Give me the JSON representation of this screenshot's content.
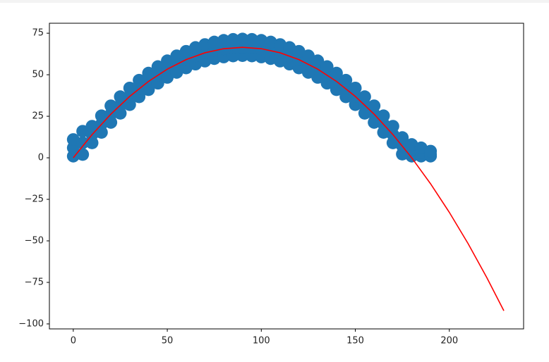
{
  "chart_data": {
    "type": "scatter",
    "xlim": [
      -12.7,
      239.5
    ],
    "ylim": [
      -103,
      81
    ],
    "xticks": [
      0,
      50,
      100,
      150,
      200
    ],
    "yticks": [
      {
        "value": -100,
        "label": "−100"
      },
      {
        "value": -75,
        "label": "−75"
      },
      {
        "value": -50,
        "label": "−50"
      },
      {
        "value": -25,
        "label": "−25"
      },
      0,
      25,
      50,
      75
    ],
    "series": [
      {
        "type": "scatter",
        "color": "#1f77b4",
        "x": [
          0,
          0,
          0,
          5,
          5,
          5,
          10,
          10,
          10,
          15,
          15,
          15,
          20,
          20,
          20,
          25,
          25,
          25,
          30,
          30,
          30,
          35,
          35,
          35,
          40,
          40,
          40,
          45,
          45,
          45,
          50,
          50,
          50,
          55,
          55,
          55,
          60,
          60,
          60,
          65,
          65,
          65,
          70,
          70,
          70,
          75,
          75,
          75,
          80,
          80,
          80,
          85,
          85,
          85,
          90,
          90,
          90,
          95,
          95,
          95,
          100,
          100,
          100,
          105,
          105,
          105,
          110,
          110,
          110,
          115,
          115,
          115,
          120,
          120,
          120,
          125,
          125,
          125,
          130,
          130,
          130,
          135,
          135,
          135,
          140,
          140,
          140,
          145,
          145,
          145,
          150,
          150,
          150,
          155,
          155,
          155,
          160,
          160,
          160,
          165,
          165,
          165,
          170,
          170,
          170,
          175,
          175,
          175,
          180,
          180,
          180,
          185,
          185,
          185,
          190,
          190,
          190
        ],
        "y": [
          1,
          6,
          11,
          2,
          9,
          16,
          9,
          14,
          19,
          15.3,
          20.3,
          25.3,
          21.3,
          26.3,
          31.3,
          26.8,
          31.8,
          36.8,
          32,
          37,
          42,
          36.7,
          41.7,
          46.7,
          41,
          46,
          51,
          44.9,
          49.9,
          54.9,
          48.4,
          53.4,
          58.4,
          51.4,
          56.4,
          61.4,
          54.1,
          59.1,
          64.1,
          56.4,
          61.4,
          66.4,
          58.2,
          63.2,
          68.2,
          59.7,
          64.7,
          69.7,
          60.7,
          65.7,
          70.7,
          61.3,
          66.3,
          71.3,
          61.5,
          66.5,
          71.5,
          61.3,
          66.3,
          71.3,
          60.7,
          65.7,
          70.7,
          59.7,
          64.7,
          69.7,
          58.2,
          63.2,
          68.2,
          56.4,
          61.4,
          66.4,
          54.1,
          59.1,
          64.1,
          51.4,
          56.4,
          61.4,
          48.4,
          53.4,
          58.4,
          44.9,
          49.9,
          54.9,
          41,
          46,
          51,
          36.7,
          41.7,
          46.7,
          32,
          37,
          42,
          26.8,
          31.8,
          36.8,
          21.3,
          26.3,
          31.3,
          15.3,
          20.3,
          25.3,
          9,
          14,
          19,
          2.2,
          7.2,
          12.2,
          1,
          3,
          8,
          1,
          3,
          6,
          1,
          2,
          4
        ]
      },
      {
        "type": "line",
        "color": "#ff0000",
        "x": [
          0,
          10,
          20,
          30,
          40,
          50,
          60,
          70,
          80,
          90,
          100,
          110,
          120,
          130,
          140,
          150,
          160,
          170,
          180,
          190,
          200,
          210,
          220,
          229
        ],
        "y": [
          0,
          13.96,
          26.27,
          36.95,
          45.98,
          53.37,
          59.11,
          63.22,
          65.68,
          66.51,
          65.68,
          63.22,
          59.11,
          53.37,
          45.98,
          36.95,
          26.27,
          13.96,
          0,
          -15.6,
          -32.84,
          -51.7,
          -72.25,
          -92.1
        ]
      }
    ]
  }
}
